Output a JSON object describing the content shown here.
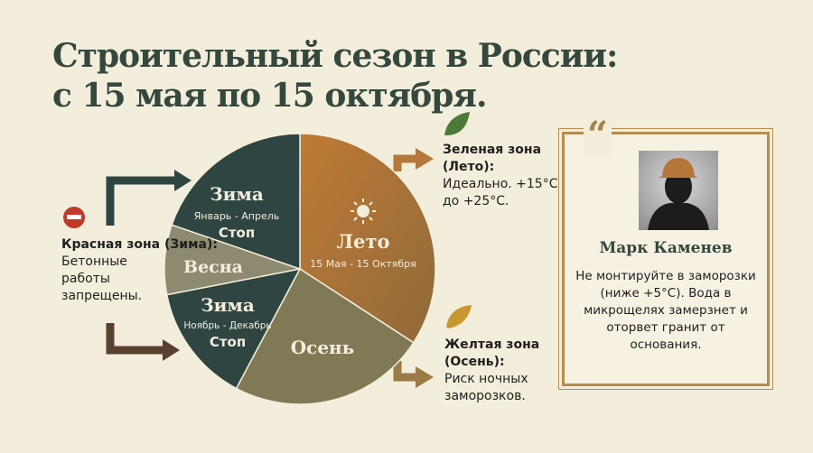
{
  "title_line1": "Строительный сезон в России:",
  "title_line2": "с 15 мая по 15 октября.",
  "chart_data": {
    "type": "pie",
    "slices": [
      {
        "label": "Лето",
        "sub": "15 Мая - 15 Октября",
        "start_deg": 0,
        "end_deg": 123,
        "color": "#b9773a"
      },
      {
        "label": "Осень",
        "start_deg": 123,
        "end_deg": 208,
        "color": "#7f7a55"
      },
      {
        "label": "Зима",
        "sub": "Ноябрь - Декабрь",
        "note": "Стоп",
        "start_deg": 208,
        "end_deg": 259,
        "color": "#2f4542"
      },
      {
        "label": "Весна",
        "start_deg": 259,
        "end_deg": 289,
        "color": "#8e8a70"
      },
      {
        "label": "Зима",
        "sub": "Январь - Апрель",
        "note": "Стоп",
        "start_deg": 289,
        "end_deg": 360,
        "color": "#2f4542"
      }
    ]
  },
  "red_zone": {
    "title": "Красная зона (Зима):",
    "text": "Бетонные работы запрещены.",
    "icon": "no-entry-icon",
    "color": "#c0392b"
  },
  "green_zone": {
    "title": "Зеленая зона (Лето):",
    "text": "Идеально. +15°C до +25°C.",
    "icon": "leaf-icon",
    "color": "#4d7a3a"
  },
  "yellow_zone": {
    "title": "Желтая зона (Осень):",
    "text": "Риск ночных заморозков.",
    "icon": "autumn-leaf-icon",
    "color": "#c9972f"
  },
  "quote": {
    "mark": "“",
    "name": "Марк Каменев",
    "text": "Не монтируйте в заморозки (ниже +5°C). Вода в микрощелях замерзнет и оторвет гранит от основания."
  }
}
